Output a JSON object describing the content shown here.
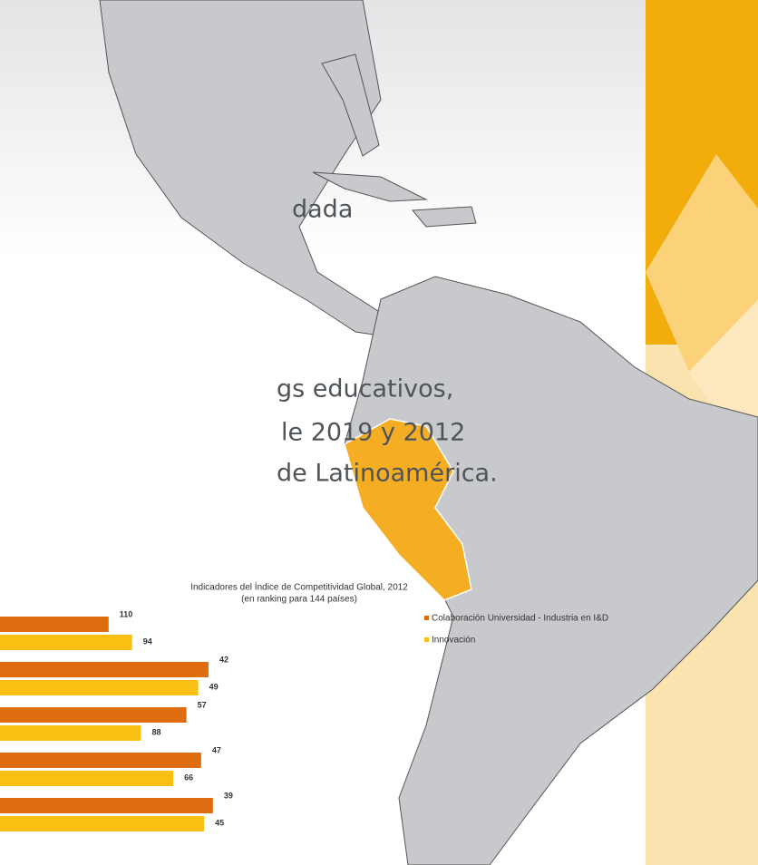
{
  "texts": [
    "dada",
    "gs educativos,",
    "le 2019 y 2012",
    "de Latinoamérica."
  ],
  "chart_data": {
    "type": "bar",
    "orientation": "horizontal",
    "title": "Indicadores del Índice de Competitividad Global, 2012",
    "subtitle": "(en ranking para 144 países)",
    "categories": [
      null,
      null,
      null,
      null,
      null
    ],
    "series": [
      {
        "name": "Colaboración Universidad - Industria en I&D",
        "color": "#e06c10",
        "values": [
          110,
          42,
          57,
          47,
          39
        ]
      },
      {
        "name": "Innovación",
        "color": "#f9c013",
        "values": [
          94,
          49,
          88,
          66,
          45
        ]
      }
    ],
    "legend": "top-right"
  }
}
